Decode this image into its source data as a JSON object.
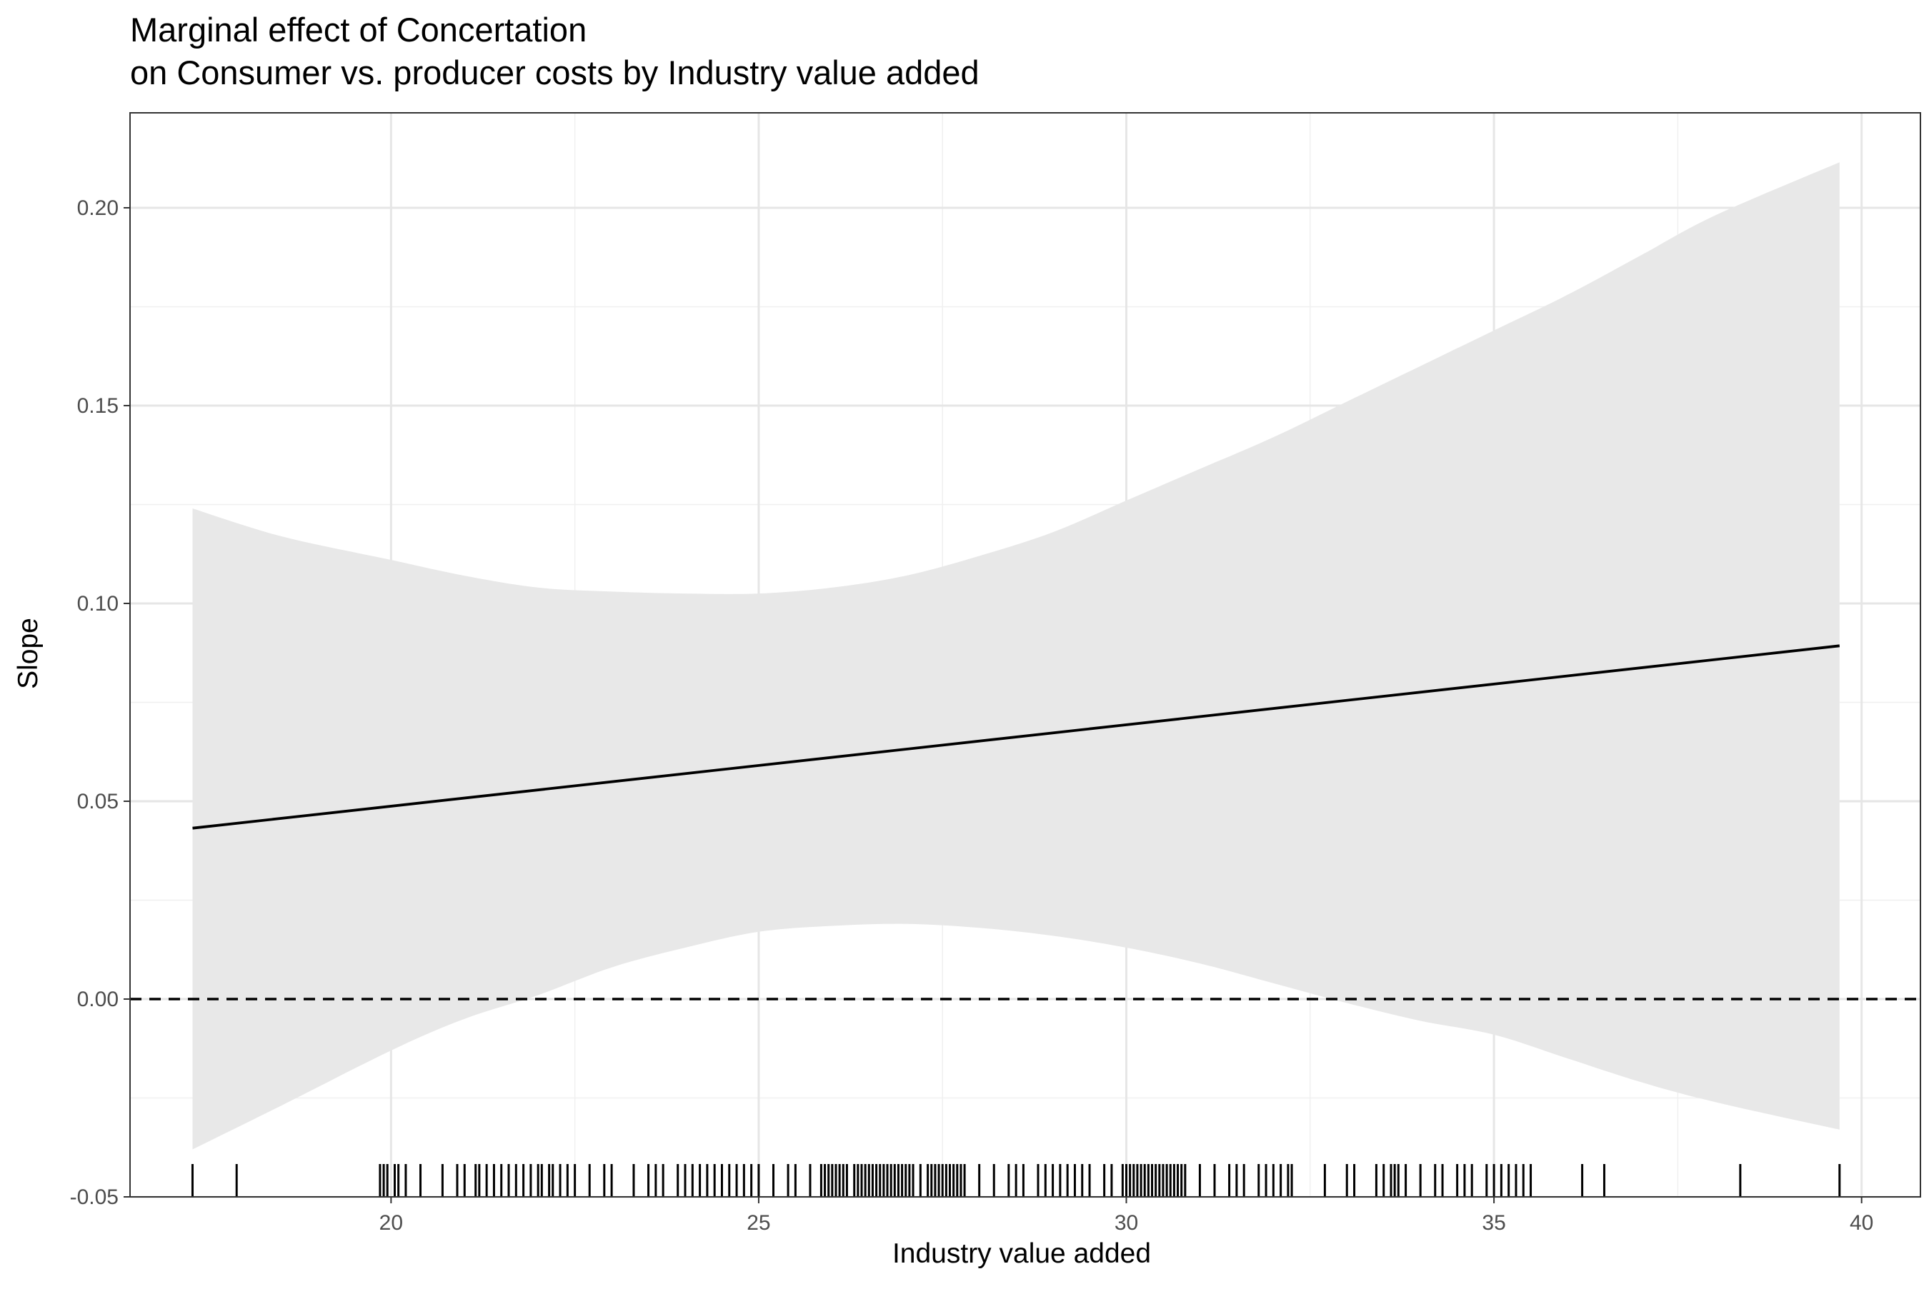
{
  "chart_data": {
    "type": "line",
    "title": "Marginal effect of Concertation",
    "subtitle": "on Consumer vs. producer costs by Industry value added",
    "xlabel": "Industry value added",
    "ylabel": "Slope",
    "xlim": [
      16.45,
      40.8
    ],
    "ylim": [
      -0.05,
      0.224
    ],
    "x_ticks": [
      20,
      25,
      30,
      35,
      40
    ],
    "x_tick_labels": [
      "20",
      "25",
      "30",
      "35",
      "40"
    ],
    "y_ticks": [
      -0.05,
      0.0,
      0.05,
      0.1,
      0.15,
      0.2
    ],
    "y_tick_labels": [
      "-0.05",
      "0.00",
      "0.05",
      "0.10",
      "0.15",
      "0.20"
    ],
    "grid": true,
    "reference_line": {
      "y": 0,
      "style": "dashed",
      "color": "#000000"
    },
    "series": [
      {
        "style": "line",
        "color": "#000000",
        "x": [
          17.3,
          39.7
        ],
        "y": [
          0.0432,
          0.0893
        ]
      }
    ],
    "confidence_band": {
      "color": "#e8e8e8",
      "x": [
        17.3,
        18.5,
        20.0,
        21.0,
        22.0,
        23.0,
        24.0,
        25.0,
        26.0,
        27.0,
        28.0,
        29.0,
        30.0,
        31.0,
        32.0,
        33.0,
        34.0,
        35.0,
        36.0,
        37.0,
        38.0,
        39.7
      ],
      "lower": [
        -0.038,
        -0.027,
        -0.013,
        -0.005,
        0.001,
        0.008,
        0.013,
        0.017,
        0.0185,
        0.019,
        0.018,
        0.016,
        0.013,
        0.009,
        0.004,
        -0.001,
        -0.0055,
        -0.009,
        -0.015,
        -0.021,
        -0.026,
        -0.033
      ],
      "upper": [
        0.124,
        0.117,
        0.111,
        0.107,
        0.104,
        0.103,
        0.1025,
        0.1025,
        0.104,
        0.107,
        0.112,
        0.118,
        0.126,
        0.134,
        0.142,
        0.151,
        0.16,
        0.169,
        0.178,
        0.188,
        0.198,
        0.2115
      ]
    },
    "rug_x": [
      17.3,
      17.9,
      19.85,
      19.9,
      19.95,
      20.05,
      20.1,
      20.2,
      20.4,
      20.7,
      20.9,
      21.0,
      21.15,
      21.2,
      21.3,
      21.4,
      21.5,
      21.6,
      21.7,
      21.8,
      21.9,
      22.0,
      22.05,
      22.15,
      22.2,
      22.3,
      22.4,
      22.5,
      22.7,
      22.9,
      23.0,
      23.3,
      23.5,
      23.6,
      23.7,
      23.9,
      24.0,
      24.1,
      24.2,
      24.3,
      24.4,
      24.5,
      24.6,
      24.7,
      24.8,
      24.9,
      25.0,
      25.2,
      25.4,
      25.5,
      25.7,
      25.85,
      25.9,
      25.95,
      26.0,
      26.05,
      26.1,
      26.15,
      26.2,
      26.3,
      26.35,
      26.4,
      26.45,
      26.5,
      26.55,
      26.6,
      26.65,
      26.7,
      26.75,
      26.8,
      26.85,
      26.9,
      26.95,
      27.0,
      27.05,
      27.1,
      27.2,
      27.3,
      27.35,
      27.4,
      27.45,
      27.5,
      27.55,
      27.6,
      27.65,
      27.7,
      27.75,
      27.8,
      28.0,
      28.2,
      28.4,
      28.5,
      28.6,
      28.8,
      28.9,
      29.0,
      29.1,
      29.2,
      29.3,
      29.4,
      29.5,
      29.7,
      29.8,
      29.95,
      30.0,
      30.05,
      30.1,
      30.15,
      30.2,
      30.25,
      30.3,
      30.35,
      30.4,
      30.45,
      30.5,
      30.55,
      30.6,
      30.65,
      30.7,
      30.75,
      30.8,
      31.0,
      31.2,
      31.4,
      31.5,
      31.6,
      31.8,
      31.9,
      32.0,
      32.1,
      32.2,
      32.25,
      32.7,
      33.0,
      33.1,
      33.4,
      33.5,
      33.6,
      33.65,
      33.7,
      33.8,
      34.0,
      34.2,
      34.3,
      34.5,
      34.6,
      34.7,
      34.9,
      35.0,
      35.1,
      35.2,
      35.3,
      35.4,
      35.5,
      36.2,
      36.5,
      38.35,
      39.7
    ]
  }
}
